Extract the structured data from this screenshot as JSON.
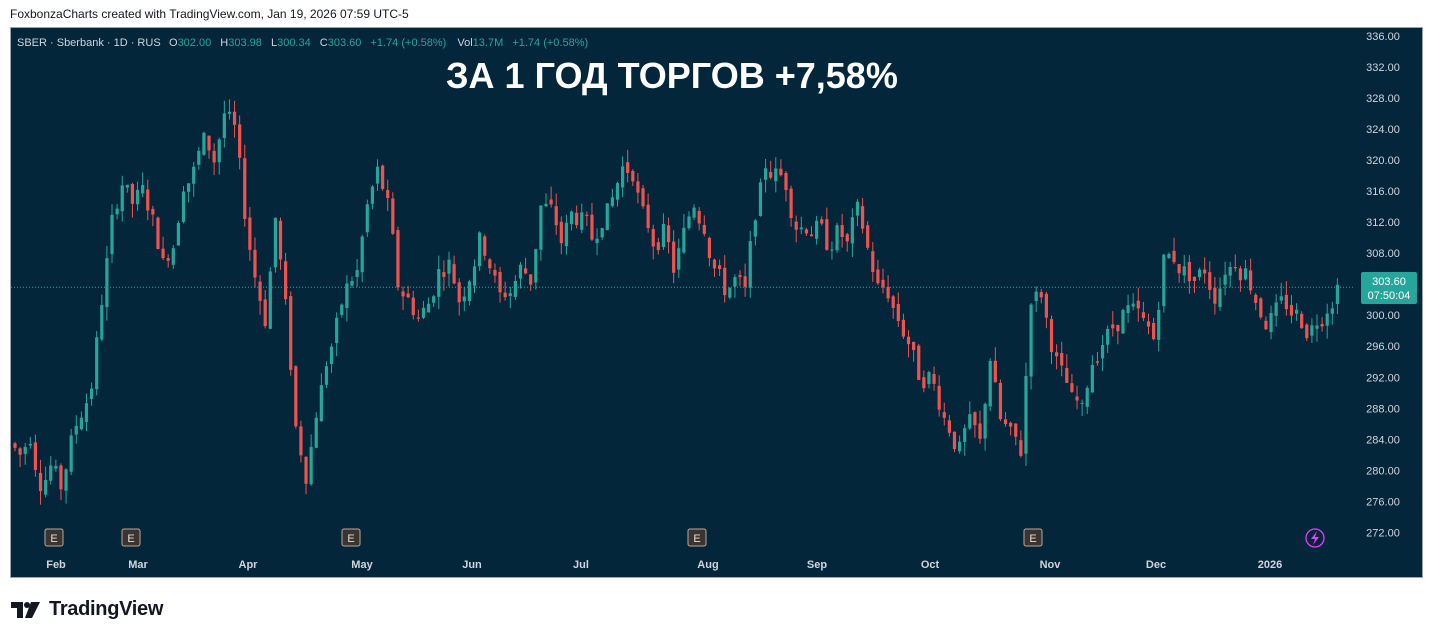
{
  "header": {
    "caption": "FoxbonzaCharts created with TradingView.com, Jan 19, 2026 07:59 UTC-5"
  },
  "legend": {
    "symbol": "SBER · Sberbank · 1D · RUS",
    "o_label": "O",
    "o_value": "302.00",
    "h_label": "H",
    "h_value": "303.98",
    "l_label": "L",
    "l_value": "300.34",
    "c_label": "C",
    "c_value": "303.60",
    "change": "+1.74 (+0.58%)",
    "vol_label": "Vol",
    "vol_value": "13.7M",
    "vol_change": "+1.74 (+0.58%)"
  },
  "overlay_text": "ЗА 1 ГОД ТОРГОВ +7,58%",
  "price_tag": {
    "price": "303.60",
    "countdown": "07:50:04"
  },
  "earnings_marker": "E",
  "brand": {
    "name": "TradingView"
  },
  "colors": {
    "background": "#04263a",
    "up": "#26a69a",
    "down": "#ef5350",
    "axis_text": "#d1d4dc",
    "text": "#ffffff",
    "marker": "#e040fb"
  },
  "icons": [
    "earnings-marker-icon",
    "lightning-icon",
    "tradingview-logo-icon"
  ],
  "chart_data": {
    "type": "candlestick",
    "ylim": [
      270,
      337
    ],
    "y_ticks": [
      "272.00",
      "276.00",
      "280.00",
      "284.00",
      "288.00",
      "292.00",
      "296.00",
      "300.00",
      "304.00",
      "308.00",
      "312.00",
      "316.00",
      "320.00",
      "324.00",
      "328.00",
      "332.00",
      "336.00"
    ],
    "x_ticks": [
      "Feb",
      "Mar",
      "Apr",
      "May",
      "Jun",
      "Jul",
      "Aug",
      "Sep",
      "Oct",
      "Nov",
      "Dec",
      "2026"
    ],
    "last_price": 303.6,
    "earnings_months": [
      "Feb",
      "Mar",
      "May",
      "Aug",
      "Nov"
    ],
    "closes": [
      282.0,
      284.5,
      278.5,
      280.5,
      278.0,
      283.5,
      287.5,
      291.0,
      302.0,
      312.0,
      317.0,
      314.5,
      316.0,
      312.0,
      306.5,
      309.0,
      317.0,
      318.5,
      322.5,
      320.0,
      326.0,
      324.0,
      313.5,
      305.0,
      299.5,
      312.5,
      301.0,
      285.5,
      279.5,
      287.5,
      294.0,
      298.5,
      303.5,
      305.5,
      314.0,
      318.5,
      314.0,
      304.0,
      302.0,
      299.5,
      301.5,
      305.5,
      306.5,
      302.0,
      305.0,
      309.5,
      306.5,
      302.5,
      303.0,
      306.0,
      304.5,
      314.0,
      313.5,
      309.5,
      313.0,
      312.0,
      310.0,
      312.5,
      315.0,
      319.0,
      318.5,
      313.0,
      309.5,
      310.5,
      306.0,
      310.5,
      314.5,
      311.5,
      306.0,
      303.5,
      304.5,
      303.0,
      313.5,
      319.5,
      318.0,
      317.0,
      311.5,
      311.5,
      311.0,
      309.5,
      310.5,
      309.0,
      313.5,
      308.5,
      303.5,
      303.0,
      299.5,
      296.5,
      292.5,
      292.0,
      289.0,
      285.5,
      282.5,
      286.0,
      283.5,
      294.5,
      286.5,
      284.5,
      282.5,
      302.5,
      303.0,
      296.5,
      292.5,
      289.0,
      287.5,
      294.0,
      296.5,
      298.5,
      300.0,
      300.5,
      299.0,
      297.0,
      307.0,
      307.5,
      305.5,
      304.5,
      306.0,
      302.5,
      306.0,
      307.0,
      305.5,
      302.0,
      299.0,
      300.5,
      301.5,
      300.0,
      298.0,
      299.5,
      301.0,
      303.6
    ]
  }
}
